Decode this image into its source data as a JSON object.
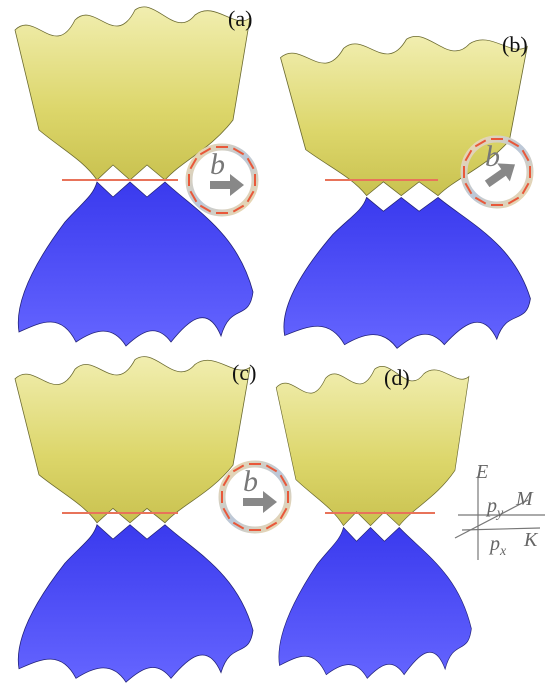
{
  "panels": [
    {
      "label": "(a)",
      "field": "b"
    },
    {
      "label": "(b)",
      "field": "b"
    },
    {
      "label": "(c)",
      "field": "b"
    },
    {
      "label": "(d)"
    }
  ],
  "axes": {
    "energy": "E",
    "py_base": "p",
    "py_sub": "y",
    "m": "M",
    "px_base": "p",
    "px_sub": "x",
    "k": "K"
  }
}
